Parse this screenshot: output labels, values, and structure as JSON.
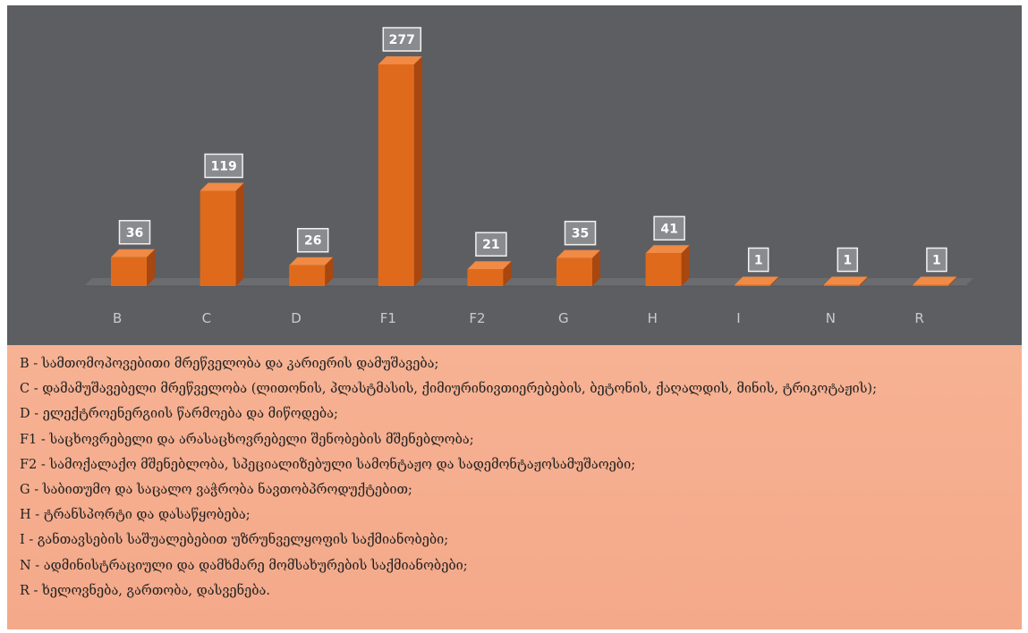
{
  "chart_data": {
    "type": "bar",
    "categories": [
      "B",
      "C",
      "D",
      "F1",
      "F2",
      "G",
      "H",
      "I",
      "N",
      "R"
    ],
    "values": [
      36,
      119,
      26,
      277,
      21,
      35,
      41,
      1,
      1,
      1
    ],
    "data_labels": [
      "36",
      "119",
      "26",
      "277",
      "21",
      "35",
      "41",
      "1",
      "1",
      "1"
    ],
    "title": "",
    "xlabel": "",
    "ylabel": "",
    "ylim": [
      0,
      300
    ],
    "grid": false,
    "style": "3d-column",
    "colors": {
      "background": "#5d5e62",
      "bar_front": "#e06a1c",
      "bar_side": "#a8470f",
      "bar_top": "#f08a45",
      "label_box": "#8a8b8e",
      "legend_bg": "#f5ad8d"
    }
  },
  "legend": [
    {
      "text": "B - სამთომოპოვებითი მრეწველობა და კარიერის დამუშავება;"
    },
    {
      "text": "C - დამამუშავებელი მრეწველობა (ლითონის, პლასტმასის, ქიმიურინივთიერებების, ბეტონის, ქაღალდის, მინის, ტრიკოტაჟის);"
    },
    {
      "text": "D - ელექტროენერგიის წარმოება და მიწოდება;"
    },
    {
      "text": "F1 - საცხოვრებელი და არასაცხოვრებელი შენობების მშენებლობა;"
    },
    {
      "text": "F2 - სამოქალაქო მშენებლობა, სპეციალიზებული სამონტაჟო და სადემონტაჟოსამუშაოები;"
    },
    {
      "text": "G - საბითუმო და საცალო ვაჭრობა ნავთობპროდუქტებით;"
    },
    {
      "text": "H - ტრანსპორტი და დასაწყობება;"
    },
    {
      "text": "I - განთავსების საშუალებებით უზრუნველყოფის საქმიანობები;"
    },
    {
      "text": "N - ადმინისტრაციული და დამხმარე მომსახურების საქმიანობები;"
    },
    {
      "text": "R - ხელოვნება, გართობა, დასვენება."
    }
  ]
}
